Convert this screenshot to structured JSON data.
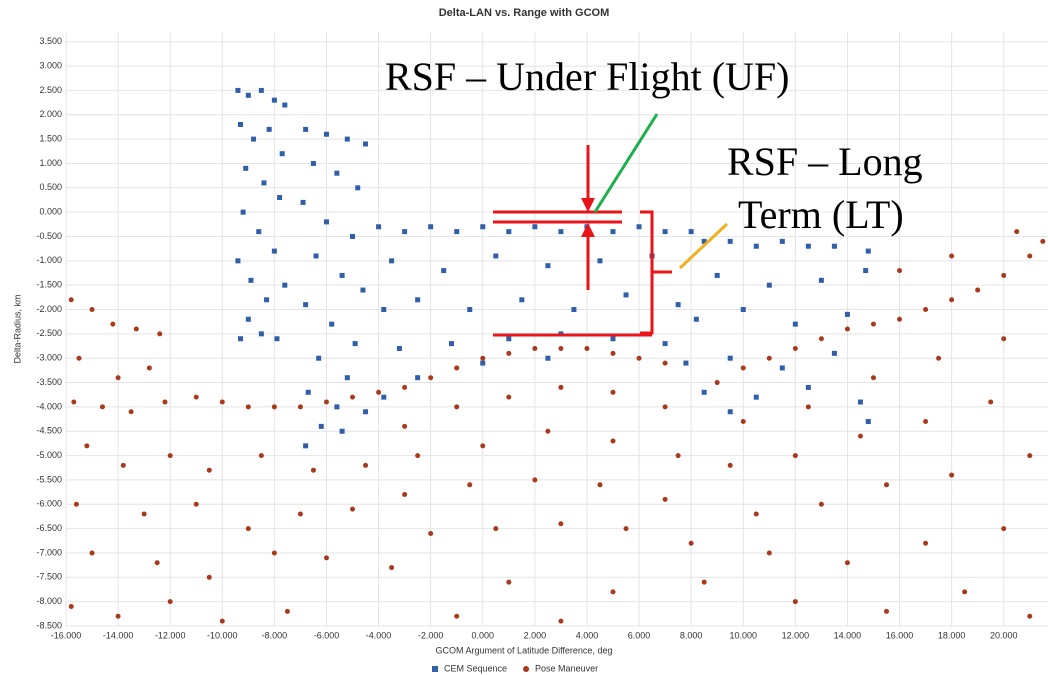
{
  "chart_data": {
    "type": "scatter",
    "title": "Delta-LAN vs. Range with GCOM",
    "x_label": "GCOM Argument of Latitude Difference, deg",
    "y_label": "Delta-Radius, km",
    "xlim": [
      -16,
      21.7
    ],
    "ylim": [
      -8.5,
      3.7
    ],
    "grid": true,
    "xticks": [
      {
        "value": -16,
        "label": "-16.000"
      },
      {
        "value": -14,
        "label": "-14.000"
      },
      {
        "value": -12,
        "label": "-12.000"
      },
      {
        "value": -10,
        "label": "-10.000"
      },
      {
        "value": -8,
        "label": "-8.000"
      },
      {
        "value": -6,
        "label": "-6.000"
      },
      {
        "value": -4,
        "label": "-4.000"
      },
      {
        "value": -2,
        "label": "-2.000"
      },
      {
        "value": 0,
        "label": "0.000"
      },
      {
        "value": 2,
        "label": "2.000"
      },
      {
        "value": 4,
        "label": "4.000"
      },
      {
        "value": 6,
        "label": "6.000"
      },
      {
        "value": 8,
        "label": "8.000"
      },
      {
        "value": 10,
        "label": "10.000"
      },
      {
        "value": 12,
        "label": "12.000"
      },
      {
        "value": 14,
        "label": "14.000"
      },
      {
        "value": 16,
        "label": "16.000"
      },
      {
        "value": 18,
        "label": "18.000"
      },
      {
        "value": 20,
        "label": "20.000"
      }
    ],
    "yticks": [
      {
        "value": 3.5,
        "label": "3.500"
      },
      {
        "value": 3,
        "label": "3.000"
      },
      {
        "value": 2.5,
        "label": "2.500"
      },
      {
        "value": 2,
        "label": "2.000"
      },
      {
        "value": 1.5,
        "label": "1.500"
      },
      {
        "value": 1,
        "label": "1.000"
      },
      {
        "value": 0.5,
        "label": "0.500"
      },
      {
        "value": 0,
        "label": "0.000"
      },
      {
        "value": -0.5,
        "label": "-0.500"
      },
      {
        "value": -1,
        "label": "-1.000"
      },
      {
        "value": -1.5,
        "label": "-1.500"
      },
      {
        "value": -2,
        "label": "-2.000"
      },
      {
        "value": -2.5,
        "label": "-2.500"
      },
      {
        "value": -3,
        "label": "-3.000"
      },
      {
        "value": -3.5,
        "label": "-3.500"
      },
      {
        "value": -4,
        "label": "-4.000"
      },
      {
        "value": -4.5,
        "label": "-4.500"
      },
      {
        "value": -5,
        "label": "-5.000"
      },
      {
        "value": -5.5,
        "label": "-5.500"
      },
      {
        "value": -6,
        "label": "-6.000"
      },
      {
        "value": -6.5,
        "label": "-6.500"
      },
      {
        "value": -7,
        "label": "-7.000"
      },
      {
        "value": -7.5,
        "label": "-7.500"
      },
      {
        "value": -8,
        "label": "-8.000"
      },
      {
        "value": -8.5,
        "label": "-8.500"
      }
    ],
    "annotations": [
      "RSF – Under Flight (UF)",
      "RSF – Long",
      "Term (LT)"
    ],
    "series": [
      {
        "name": "CEM Sequence",
        "color": "#2f5fa8",
        "marker": "square",
        "x": [
          -9.4,
          -9.0,
          -8.5,
          -8.0,
          -7.6,
          -9.3,
          -8.8,
          -8.2,
          -7.7,
          -9.1,
          -8.4,
          -7.8,
          -9.2,
          -8.6,
          -8.0,
          -9.4,
          -8.9,
          -8.3,
          -7.6,
          -9.0,
          -8.5,
          -7.9,
          -9.3,
          -6.8,
          -6.0,
          -5.2,
          -4.5,
          -6.5,
          -5.6,
          -4.8,
          -6.9,
          -6.0,
          -5.0,
          -6.4,
          -5.4,
          -4.6,
          -6.8,
          -5.8,
          -4.9,
          -6.3,
          -5.2,
          -6.7,
          -5.6,
          -4.5,
          -6.2,
          -5.4,
          -6.8,
          -4.0,
          -3.0,
          -2.0,
          -1.0,
          0.0,
          1.0,
          2.0,
          3.0,
          4.0,
          5.0,
          6.0,
          7.0,
          8.0,
          -3.5,
          -1.5,
          0.5,
          2.5,
          4.5,
          6.5,
          -3.8,
          -2.5,
          -0.5,
          1.5,
          3.5,
          5.5,
          7.5,
          -3.2,
          -1.2,
          1.0,
          3.0,
          5.0,
          7.0,
          -2.5,
          0.0,
          2.5,
          -3.8,
          8.5,
          9.5,
          10.5,
          11.5,
          12.5,
          13.5,
          14.8,
          9.0,
          11.0,
          13.0,
          14.7,
          8.2,
          10.0,
          12.0,
          14.0,
          7.8,
          9.5,
          11.5,
          13.5,
          8.5,
          10.5,
          12.5,
          14.5,
          9.5,
          14.8
        ],
        "values": [
          2.5,
          2.4,
          2.5,
          2.3,
          2.2,
          1.8,
          1.5,
          1.7,
          1.2,
          0.9,
          0.6,
          0.3,
          0.0,
          -0.4,
          -0.8,
          -1.0,
          -1.4,
          -1.8,
          -1.5,
          -2.2,
          -2.5,
          -2.6,
          -2.6,
          1.7,
          1.6,
          1.5,
          1.4,
          1.0,
          0.8,
          0.5,
          0.2,
          -0.2,
          -0.5,
          -0.9,
          -1.3,
          -1.6,
          -1.9,
          -2.3,
          -2.7,
          -3.0,
          -3.4,
          -3.7,
          -4.0,
          -4.1,
          -4.4,
          -4.5,
          -4.8,
          -0.3,
          -0.4,
          -0.3,
          -0.4,
          -0.3,
          -0.4,
          -0.3,
          -0.4,
          -0.3,
          -0.4,
          -0.3,
          -0.4,
          -0.4,
          -1.0,
          -1.2,
          -0.9,
          -1.1,
          -1.0,
          -0.9,
          -2.0,
          -1.8,
          -2.0,
          -1.8,
          -2.0,
          -1.7,
          -1.9,
          -2.8,
          -2.7,
          -2.6,
          -2.5,
          -2.6,
          -2.7,
          -3.4,
          -3.1,
          -3.0,
          -3.8,
          -0.6,
          -0.6,
          -0.7,
          -0.6,
          -0.7,
          -0.7,
          -0.8,
          -1.3,
          -1.5,
          -1.4,
          -1.2,
          -2.2,
          -2.0,
          -2.3,
          -2.1,
          -3.1,
          -3.0,
          -3.2,
          -2.9,
          -3.7,
          -3.8,
          -3.6,
          -3.9,
          -4.1,
          -4.3
        ]
      },
      {
        "name": "Pose Maneuver",
        "color": "#a8391a",
        "marker": "circle",
        "x": [
          -15.8,
          -15.0,
          -14.2,
          -13.3,
          -12.4,
          -15.5,
          -14.0,
          -12.8,
          -15.7,
          -14.6,
          -13.5,
          -12.2,
          -11.0,
          -10.0,
          -9.0,
          -8.0,
          -7.0,
          -6.0,
          -5.0,
          -4.0,
          -15.2,
          -13.8,
          -12.0,
          -10.5,
          -8.5,
          -6.5,
          -4.5,
          -15.6,
          -13.0,
          -11.0,
          -9.0,
          -7.0,
          -5.0,
          -15.0,
          -12.5,
          -10.5,
          -8.0,
          -6.0,
          -15.8,
          -14.0,
          -12.0,
          -10.0,
          -7.5,
          -3.0,
          -2.0,
          -1.0,
          0.0,
          1.0,
          2.0,
          3.0,
          4.0,
          5.0,
          6.0,
          7.0,
          -3.0,
          -1.0,
          1.0,
          3.0,
          5.0,
          7.0,
          -2.5,
          0.0,
          2.5,
          5.0,
          7.5,
          -3.0,
          -0.5,
          2.0,
          4.5,
          7.0,
          -2.0,
          0.5,
          3.0,
          5.5,
          8.0,
          -3.5,
          1.0,
          5.0,
          8.5,
          -1.0,
          3.0,
          9.0,
          10.0,
          11.0,
          12.0,
          13.0,
          14.0,
          15.0,
          16.0,
          17.0,
          18.0,
          19.0,
          20.0,
          21.0,
          21.5,
          16.0,
          18.0,
          20.5,
          10.0,
          12.5,
          15.0,
          17.5,
          20.0,
          9.5,
          12.0,
          14.5,
          17.0,
          19.5,
          10.5,
          13.0,
          15.5,
          18.0,
          21.0,
          11.0,
          14.0,
          17.0,
          20.0,
          12.0,
          15.5,
          18.5,
          21.0
        ],
        "values": [
          -1.8,
          -2.0,
          -2.3,
          -2.4,
          -2.5,
          -3.0,
          -3.4,
          -3.2,
          -3.9,
          -4.0,
          -4.1,
          -3.9,
          -3.8,
          -3.9,
          -4.0,
          -4.0,
          -4.0,
          -3.9,
          -3.8,
          -3.7,
          -4.8,
          -5.2,
          -5.0,
          -5.3,
          -5.0,
          -5.3,
          -5.2,
          -6.0,
          -6.2,
          -6.0,
          -6.5,
          -6.2,
          -6.1,
          -7.0,
          -7.2,
          -7.5,
          -7.0,
          -7.1,
          -8.1,
          -8.3,
          -8.0,
          -8.4,
          -8.2,
          -3.6,
          -3.4,
          -3.2,
          -3.0,
          -2.9,
          -2.8,
          -2.8,
          -2.8,
          -2.9,
          -3.0,
          -3.1,
          -4.4,
          -4.0,
          -3.8,
          -3.6,
          -3.7,
          -4.0,
          -5.0,
          -4.8,
          -4.5,
          -4.7,
          -5.0,
          -5.8,
          -5.6,
          -5.5,
          -5.6,
          -5.9,
          -6.6,
          -6.5,
          -6.4,
          -6.5,
          -6.8,
          -7.3,
          -7.6,
          -7.8,
          -7.6,
          -8.3,
          -8.4,
          -3.5,
          -3.2,
          -3.0,
          -2.8,
          -2.6,
          -2.4,
          -2.3,
          -2.2,
          -2.0,
          -1.8,
          -1.6,
          -1.3,
          -0.9,
          -0.6,
          -1.2,
          -0.9,
          -0.4,
          -4.3,
          -4.0,
          -3.4,
          -3.0,
          -2.6,
          -5.2,
          -5.0,
          -4.6,
          -4.3,
          -3.9,
          -6.2,
          -6.0,
          -5.6,
          -5.4,
          -5.0,
          -7.0,
          -7.2,
          -6.8,
          -6.5,
          -8.0,
          -8.2,
          -7.8,
          -8.3
        ]
      }
    ]
  }
}
